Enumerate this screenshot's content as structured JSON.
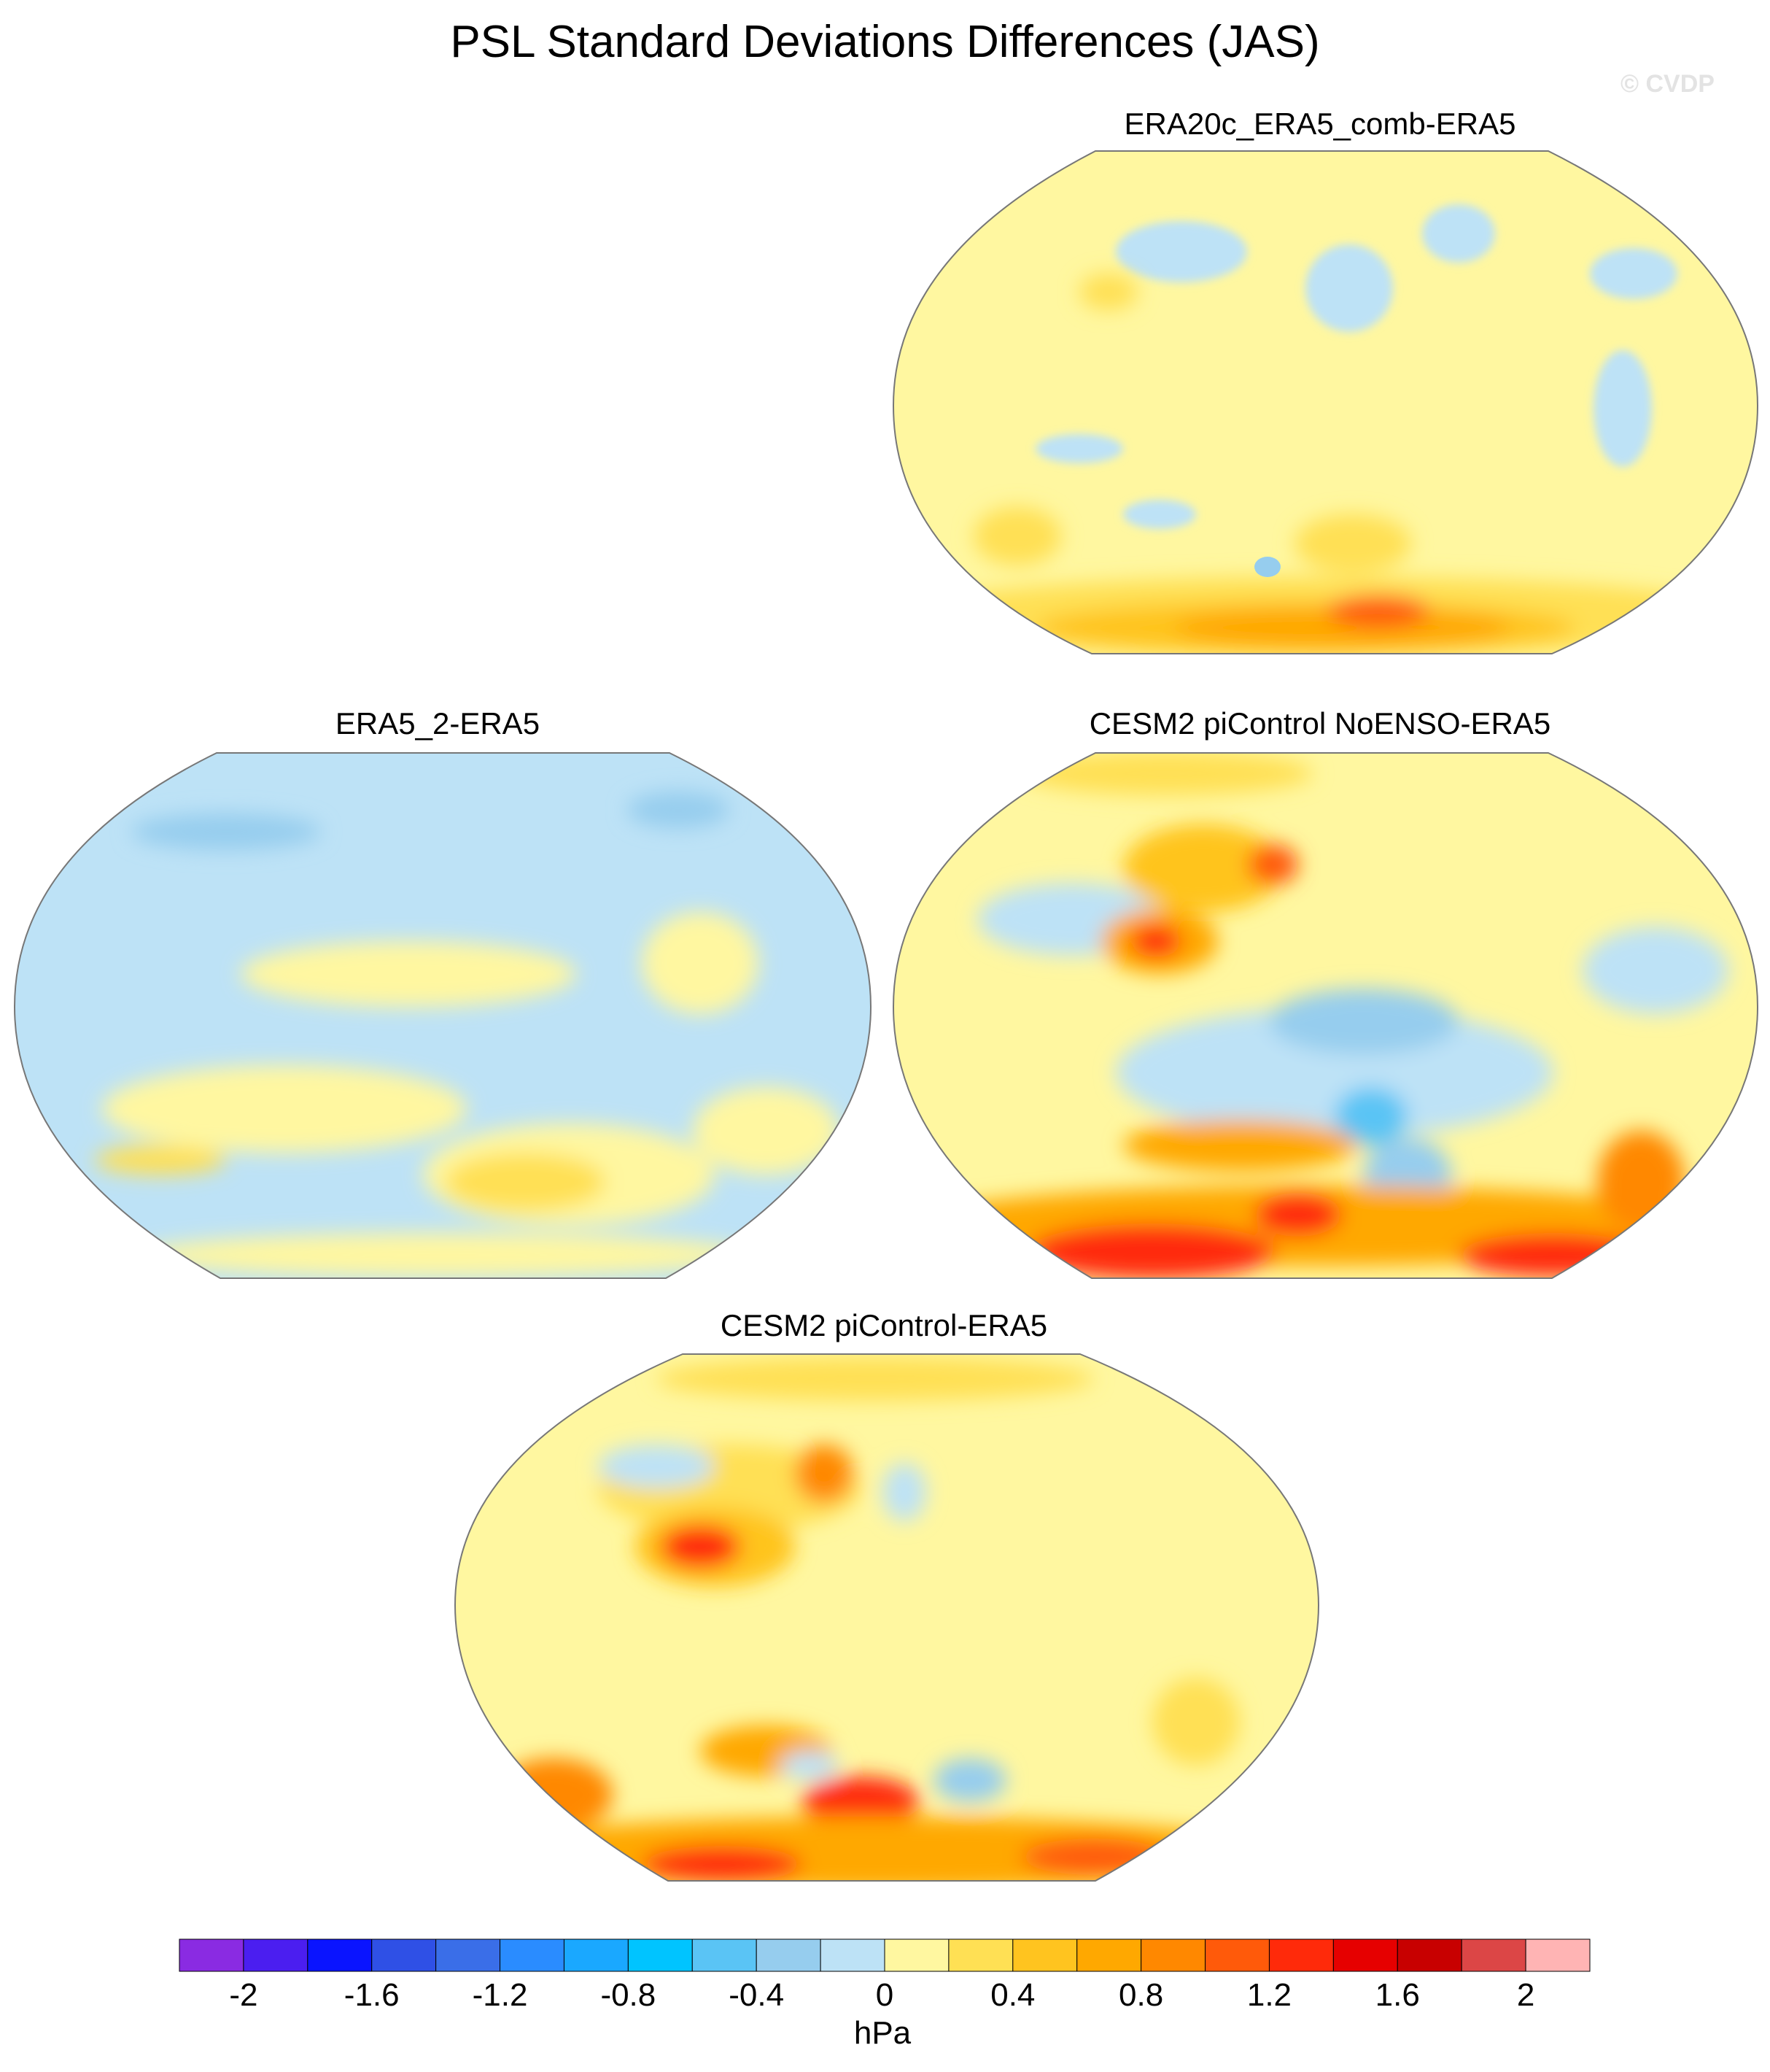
{
  "title": "PSL Standard Deviations Differences (JAS)",
  "watermark": "© CVDP",
  "panels": [
    {
      "id": "era20c",
      "title": "ERA20c_ERA5_comb-ERA5"
    },
    {
      "id": "era5_2",
      "title": "ERA5_2-ERA5"
    },
    {
      "id": "cesm2_noenso",
      "title": "CESM2 piControl NoENSO-ERA5"
    },
    {
      "id": "cesm2",
      "title": "CESM2 piControl-ERA5"
    }
  ],
  "colorbar": {
    "unit": "hPa",
    "labels": [
      "-2",
      "-1.6",
      "-1.2",
      "-0.8",
      "-0.4",
      "0",
      "0.4",
      "0.8",
      "1.2",
      "1.6",
      "2"
    ],
    "colors": [
      "#8a2be2",
      "#4b1ef0",
      "#0a14ff",
      "#2f50e6",
      "#3a6ee8",
      "#2a8cff",
      "#1aa8ff",
      "#00c4ff",
      "#5ac4f5",
      "#96cdee",
      "#bde2f6",
      "#fff7a0",
      "#ffe054",
      "#ffc41f",
      "#ffa800",
      "#ff8800",
      "#ff5a0a",
      "#ff2a0a",
      "#e60000",
      "#c80000",
      "#dc4646",
      "#ffb4b4"
    ]
  }
}
